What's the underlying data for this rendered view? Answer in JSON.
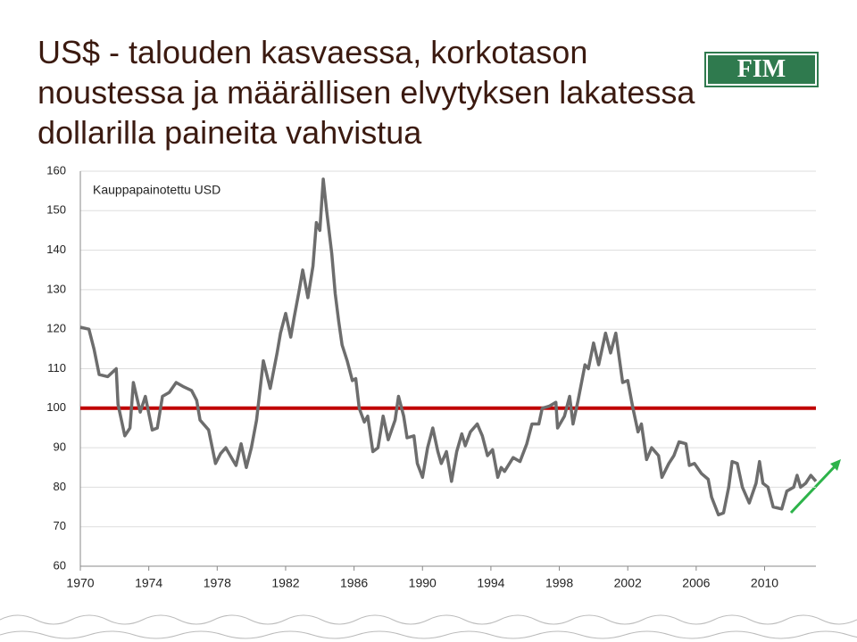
{
  "logo": "FIM",
  "chart_data": {
    "type": "line",
    "title": "US$ - talouden kasvaessa, korkotason noustessa ja määrällisen elvytyksen lakatessa dollarilla paineita vahvistua",
    "annotation": "Kauppapainotettu USD",
    "x": [
      1970,
      1970.5,
      1970.8,
      1971.1,
      1971.6,
      1972.1,
      1972.2,
      1972.6,
      1972.9,
      1973.1,
      1973.5,
      1973.8,
      1974.2,
      1974.5,
      1974.8,
      1975.2,
      1975.6,
      1976,
      1976.5,
      1976.8,
      1977,
      1977.5,
      1977.9,
      1978.2,
      1978.5,
      1978.9,
      1979.1,
      1979.4,
      1979.7,
      1980,
      1980.3,
      1980.7,
      1981.1,
      1981.5,
      1981.7,
      1982,
      1982.3,
      1982.5,
      1982.8,
      1983,
      1983.3,
      1983.6,
      1983.8,
      1984,
      1984.2,
      1984.4,
      1984.7,
      1984.9,
      1985.1,
      1985.3,
      1985.6,
      1985.9,
      1986.1,
      1986.3,
      1986.6,
      1986.8,
      1987.1,
      1987.4,
      1987.7,
      1988,
      1988.4,
      1988.6,
      1988.9,
      1989.1,
      1989.5,
      1989.7,
      1990,
      1990.3,
      1990.6,
      1990.9,
      1991.1,
      1991.4,
      1991.7,
      1992,
      1992.3,
      1992.5,
      1992.8,
      1993.2,
      1993.5,
      1993.8,
      1994.1,
      1994.4,
      1994.6,
      1994.8,
      1995.3,
      1995.7,
      1996.1,
      1996.4,
      1996.8,
      1997,
      1997.4,
      1997.8,
      1997.9,
      1998.3,
      1998.6,
      1998.8,
      1999.1,
      1999.5,
      1999.7,
      2000,
      2000.3,
      2000.7,
      2001,
      2001.3,
      2001.7,
      2002,
      2002.3,
      2002.6,
      2002.8,
      2003.1,
      2003.4,
      2003.8,
      2004,
      2004.4,
      2004.7,
      2005,
      2005.4,
      2005.6,
      2005.9,
      2006.3,
      2006.7,
      2006.9,
      2007.3,
      2007.6,
      2007.9,
      2008.1,
      2008.4,
      2008.7,
      2009.1,
      2009.5,
      2009.7,
      2009.9,
      2010.2,
      2010.5,
      2011,
      2011.3,
      2011.7,
      2011.9,
      2012.1,
      2012.4,
      2012.7,
      2013
    ],
    "series": [
      {
        "color": "#6d6d6d",
        "values": [
          120.5,
          120,
          115,
          108.5,
          108,
          110,
          101,
          93,
          95,
          106.5,
          99,
          103,
          94.5,
          95,
          103,
          104,
          106.5,
          105.5,
          104.5,
          102,
          97,
          94.5,
          86,
          88.5,
          90,
          87,
          85.5,
          91,
          85,
          90,
          97,
          112,
          105,
          114,
          119,
          124,
          118,
          123,
          130,
          135,
          128,
          136,
          147,
          145,
          158,
          150,
          139,
          129,
          122,
          116,
          112,
          107,
          107.5,
          100,
          96.5,
          98,
          89,
          90,
          98,
          92,
          97,
          103,
          98,
          92.5,
          93,
          86,
          82.5,
          90,
          95,
          89,
          86,
          89,
          81.5,
          89,
          93.5,
          90.5,
          94,
          96,
          93,
          88,
          89.5,
          82.5,
          85,
          84,
          87.5,
          86.5,
          91,
          96,
          96,
          100,
          100.5,
          101.5,
          95,
          98,
          103,
          96,
          102,
          111,
          110,
          116.5,
          111,
          119,
          114,
          119,
          106.5,
          107,
          100,
          94,
          96,
          87,
          90,
          88,
          82.5,
          86,
          88,
          91.5,
          91,
          85.5,
          86,
          83.5,
          82,
          77.5,
          73,
          73.5,
          80,
          86.5,
          86,
          80,
          76,
          81,
          86.5,
          81,
          80,
          75,
          74.5,
          79,
          80,
          83,
          80,
          81,
          83,
          81.5
        ]
      }
    ],
    "reference_line": {
      "value": 100,
      "color": "#c00000"
    },
    "xlim": [
      1970,
      2013
    ],
    "xticks": [
      1970,
      1974,
      1978,
      1982,
      1986,
      1990,
      1994,
      1998,
      2002,
      2006,
      2010
    ],
    "ylim": [
      60,
      160
    ],
    "yticks": [
      60,
      70,
      80,
      90,
      100,
      110,
      120,
      130,
      140,
      150,
      160
    ],
    "grid": true
  }
}
